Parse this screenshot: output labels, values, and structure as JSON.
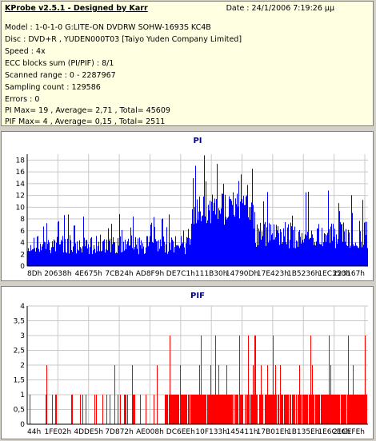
{
  "header": {
    "title": "KProbe v2.5.1 - Designed by Karr",
    "date": "Date : 24/1/2006 7:19:26 μμ",
    "lines": [
      "Model : 1-0-1-0 G:LITE-ON DVDRW SOHW-1693S KC4B",
      "Disc : DVD+R , YUDEN000T03 [Taiyo Yuden Company Limited]",
      "Speed : 4x",
      "ECC blocks sum (PI/PIF) : 8/1",
      "Scanned range : 0 - 2287967",
      "Sampling count : 129586",
      "Errors : 0",
      "PI Max= 19 , Average= 2,71 , Total= 45609",
      "PIF Max= 4 , Average= 0,15 , Total= 2511"
    ]
  },
  "chart_data": [
    {
      "type": "bar",
      "title": "PI",
      "color": "#0000ff",
      "ylim": [
        0,
        19
      ],
      "yticks": [
        "0",
        "2",
        "4",
        "6",
        "8",
        "10",
        "12",
        "14",
        "16",
        "18"
      ],
      "xticks": [
        "8Dh",
        "20638h",
        "4E675h",
        "7CB24h",
        "AD8F9h",
        "DE7C1h",
        "111B30h",
        "14790Dh",
        "17E423h",
        "1B5236h",
        "1EC350h",
        "223167h"
      ],
      "grid": true,
      "profile": {
        "max": 19,
        "average": 2.71,
        "segments": [
          {
            "from": 0.0,
            "to": 0.48,
            "base": 2,
            "peak": 9
          },
          {
            "from": 0.48,
            "to": 0.66,
            "base": 7,
            "peak": 19
          },
          {
            "from": 0.66,
            "to": 1.0,
            "base": 3,
            "peak": 13
          }
        ]
      }
    },
    {
      "type": "bar",
      "title": "PIF",
      "color": "#ff0000",
      "ylim": [
        0,
        4
      ],
      "yticks": [
        "0",
        "0,5",
        "1",
        "1,5",
        "2",
        "2,5",
        "3",
        "3,5",
        "4"
      ],
      "xticks": [
        "44h",
        "1FE02h",
        "4DDE5h",
        "7D872h",
        "AE008h",
        "DC6EEh",
        "10F133h",
        "145411h",
        "17B01Eh",
        "1B135Eh",
        "1E6CE6h",
        "21CEFEh"
      ],
      "grid": true,
      "profile": {
        "max": 4,
        "average": 0.15,
        "segments": [
          {
            "from": 0.0,
            "to": 0.4,
            "base": 0,
            "peak": 2
          },
          {
            "from": 0.4,
            "to": 1.0,
            "base": 1,
            "peak": 4
          }
        ]
      }
    }
  ]
}
